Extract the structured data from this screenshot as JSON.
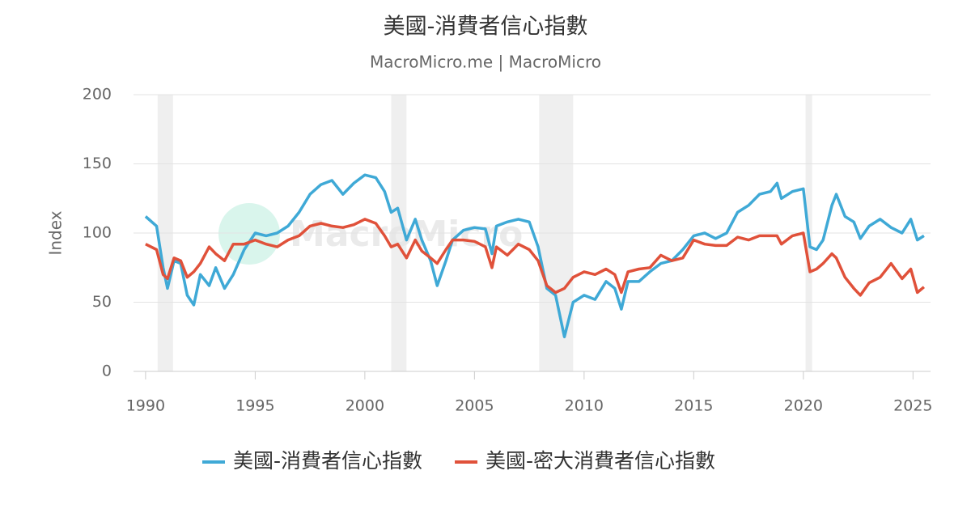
{
  "chart_data": {
    "type": "line",
    "title": "美國-消費者信心指數",
    "subtitle": "MacroMicro.me | MacroMicro",
    "watermark": "MacroMicro",
    "y_label": "Index",
    "xlim": [
      1989.45,
      2025.8
    ],
    "xticks": [
      1990,
      1995,
      2000,
      2005,
      2010,
      2015,
      2020,
      2025
    ],
    "ylim": [
      0,
      200
    ],
    "yticks": [
      0,
      50,
      100,
      150,
      200
    ],
    "grid": true,
    "legend": "bottom",
    "recessions": [
      [
        1990.55,
        1991.25
      ],
      [
        2001.2,
        2001.9
      ],
      [
        2007.95,
        2009.5
      ],
      [
        2020.1,
        2020.4
      ]
    ],
    "x": [
      1990.0,
      1990.5,
      1990.8,
      1991.0,
      1991.3,
      1991.6,
      1991.9,
      1992.2,
      1992.5,
      1992.9,
      1993.2,
      1993.6,
      1994.0,
      1994.5,
      1995.0,
      1995.5,
      1996.0,
      1996.5,
      1997.0,
      1997.5,
      1998.0,
      1998.5,
      1999.0,
      1999.5,
      2000.0,
      2000.5,
      2000.9,
      2001.2,
      2001.5,
      2001.9,
      2002.3,
      2002.6,
      2003.0,
      2003.3,
      2003.7,
      2004.0,
      2004.5,
      2005.0,
      2005.5,
      2005.8,
      2006.0,
      2006.5,
      2007.0,
      2007.5,
      2007.9,
      2008.3,
      2008.7,
      2009.1,
      2009.5,
      2010.0,
      2010.5,
      2011.0,
      2011.4,
      2011.7,
      2012.0,
      2012.5,
      2013.0,
      2013.5,
      2014.0,
      2014.5,
      2015.0,
      2015.5,
      2016.0,
      2016.5,
      2017.0,
      2017.5,
      2018.0,
      2018.5,
      2018.8,
      2019.0,
      2019.5,
      2020.0,
      2020.3,
      2020.6,
      2020.9,
      2021.3,
      2021.5,
      2021.9,
      2022.3,
      2022.6,
      2023.0,
      2023.5,
      2024.0,
      2024.5,
      2024.9,
      2025.2,
      2025.5
    ],
    "series": [
      {
        "name": "美國-消費者信心指數",
        "color": "#3fa9d6",
        "values": [
          112,
          105,
          75,
          60,
          80,
          78,
          55,
          48,
          70,
          62,
          75,
          60,
          70,
          88,
          100,
          98,
          100,
          105,
          115,
          128,
          135,
          138,
          128,
          136,
          142,
          140,
          130,
          115,
          118,
          95,
          110,
          95,
          80,
          62,
          80,
          95,
          102,
          104,
          103,
          85,
          105,
          108,
          110,
          108,
          90,
          60,
          55,
          25,
          50,
          55,
          52,
          65,
          60,
          45,
          65,
          65,
          72,
          78,
          80,
          88,
          98,
          100,
          96,
          100,
          115,
          120,
          128,
          130,
          136,
          125,
          130,
          132,
          90,
          88,
          95,
          120,
          128,
          112,
          108,
          96,
          105,
          110,
          104,
          100,
          110,
          95,
          98
        ]
      },
      {
        "name": "美國-密大消費者信心指數",
        "color": "#e0513a",
        "values": [
          92,
          88,
          70,
          67,
          82,
          80,
          68,
          72,
          78,
          90,
          85,
          80,
          92,
          92,
          95,
          92,
          90,
          95,
          98,
          105,
          107,
          105,
          104,
          106,
          110,
          107,
          98,
          90,
          92,
          82,
          95,
          87,
          82,
          78,
          88,
          95,
          95,
          94,
          90,
          75,
          90,
          84,
          92,
          88,
          80,
          62,
          57,
          60,
          68,
          72,
          70,
          74,
          70,
          57,
          72,
          74,
          75,
          84,
          80,
          82,
          95,
          92,
          91,
          91,
          97,
          95,
          98,
          98,
          98,
          92,
          98,
          100,
          72,
          74,
          78,
          85,
          82,
          68,
          60,
          55,
          64,
          68,
          78,
          67,
          74,
          57,
          61
        ]
      }
    ]
  }
}
